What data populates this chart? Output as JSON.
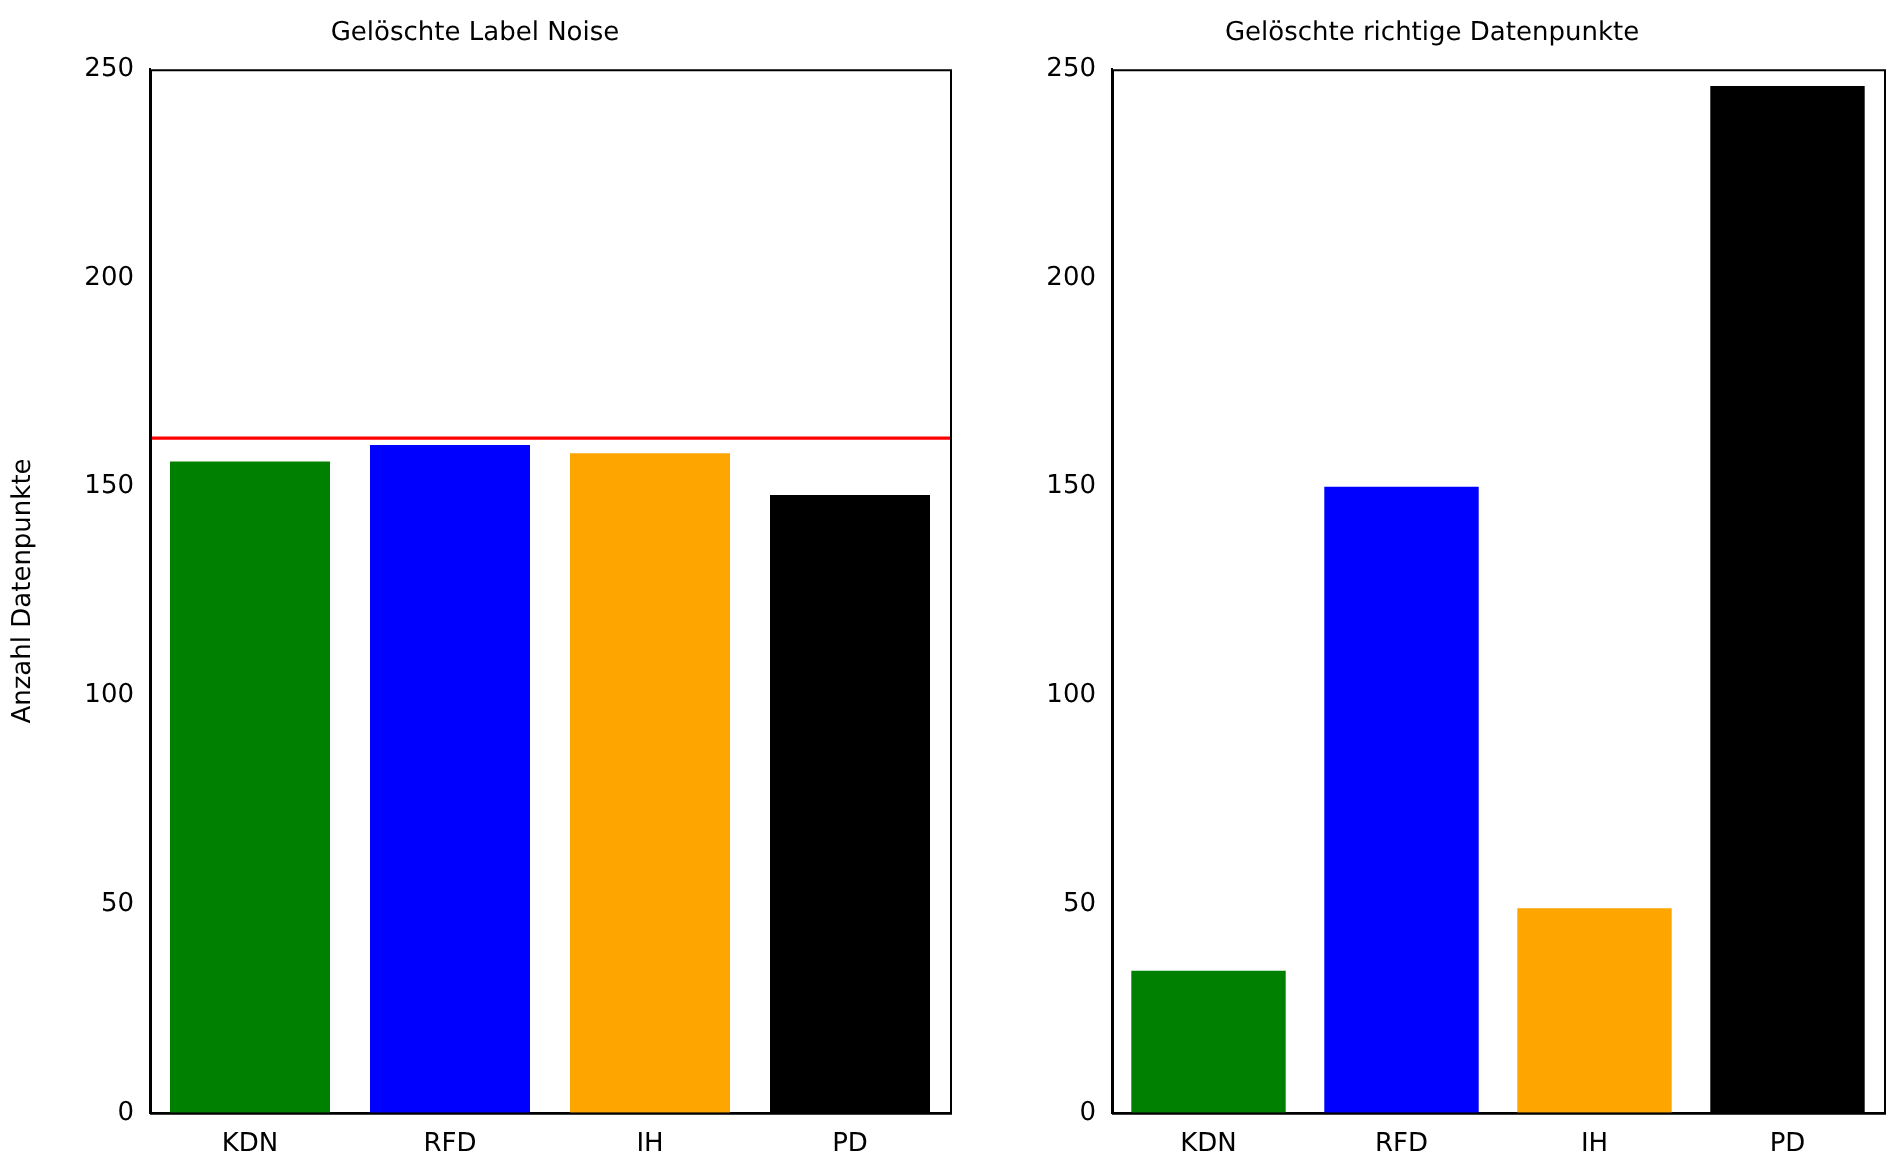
{
  "chart_data": [
    {
      "type": "bar",
      "title": "Gelöschte Label Noise",
      "ylabel": "Anzahl Datenpunkte",
      "categories": [
        "KDN",
        "RFD",
        "IH",
        "PD"
      ],
      "values": [
        156,
        160,
        158,
        148
      ],
      "colors": [
        "#008000",
        "#0000ff",
        "#ffa500",
        "#000000"
      ],
      "ylim": [
        0,
        250
      ],
      "yticks": [
        0,
        50,
        100,
        150,
        200,
        250
      ],
      "grid": false,
      "ref_lines": [
        {
          "axis": "y",
          "value": 161.6,
          "color": "#ff0000"
        }
      ]
    },
    {
      "type": "bar",
      "title": "Gelöschte richtige Datenpunkte",
      "categories": [
        "KDN",
        "RFD",
        "IH",
        "PD"
      ],
      "values": [
        34,
        150,
        49,
        246
      ],
      "colors": [
        "#008000",
        "#0000ff",
        "#ffa500",
        "#000000"
      ],
      "ylim": [
        0,
        250
      ],
      "yticks": [
        0,
        50,
        100,
        150,
        200,
        250
      ],
      "grid": false
    }
  ]
}
